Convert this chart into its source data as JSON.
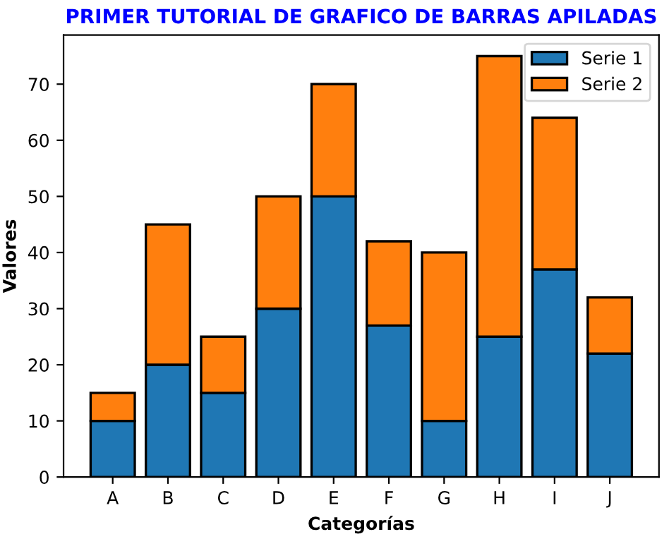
{
  "chart_data": {
    "type": "bar",
    "title": "PRIMER TUTORIAL DE GRAFICO DE BARRAS APILADAS",
    "xlabel": "Categorías",
    "ylabel": "Valores",
    "categories": [
      "A",
      "B",
      "C",
      "D",
      "E",
      "F",
      "G",
      "H",
      "I",
      "J"
    ],
    "stacked": true,
    "series": [
      {
        "name": "Serie 1",
        "color": "#1f77b4",
        "values": [
          10,
          20,
          15,
          30,
          50,
          27,
          10,
          25,
          37,
          22
        ]
      },
      {
        "name": "Serie 2",
        "color": "#ff7f0e",
        "values": [
          5,
          25,
          10,
          20,
          20,
          15,
          30,
          50,
          27,
          10
        ]
      }
    ],
    "ylim": [
      0,
      78.75
    ],
    "yticks": [
      0,
      10,
      20,
      30,
      40,
      50,
      60,
      70
    ],
    "grid": false,
    "legend": "top right"
  }
}
